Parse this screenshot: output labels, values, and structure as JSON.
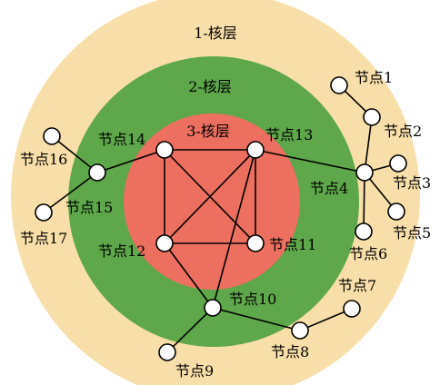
{
  "layers": [
    {
      "id": "core-1",
      "label": "1-核层",
      "color": "#f8dfa9"
    },
    {
      "id": "core-2",
      "label": "2-核层",
      "color": "#5ea74a"
    },
    {
      "id": "core-3",
      "label": "3-核层",
      "color": "#ec6f5f"
    }
  ],
  "nodes": [
    {
      "id": 1,
      "label": "节点1"
    },
    {
      "id": 2,
      "label": "节点2"
    },
    {
      "id": 3,
      "label": "节点3"
    },
    {
      "id": 4,
      "label": "节点4"
    },
    {
      "id": 5,
      "label": "节点5"
    },
    {
      "id": 6,
      "label": "节点6"
    },
    {
      "id": 7,
      "label": "节点7"
    },
    {
      "id": 8,
      "label": "节点8"
    },
    {
      "id": 9,
      "label": "节点9"
    },
    {
      "id": 10,
      "label": "节点10"
    },
    {
      "id": 11,
      "label": "节点11"
    },
    {
      "id": 12,
      "label": "节点12"
    },
    {
      "id": 13,
      "label": "节点13"
    },
    {
      "id": 14,
      "label": "节点14"
    },
    {
      "id": 15,
      "label": "节点15"
    },
    {
      "id": 16,
      "label": "节点16"
    },
    {
      "id": 17,
      "label": "节点17"
    }
  ],
  "edges": [
    [
      14,
      13
    ],
    [
      14,
      12
    ],
    [
      14,
      11
    ],
    [
      13,
      12
    ],
    [
      13,
      11
    ],
    [
      12,
      11
    ],
    [
      13,
      10
    ],
    [
      12,
      10
    ],
    [
      14,
      15
    ],
    [
      15,
      16
    ],
    [
      15,
      17
    ],
    [
      13,
      4
    ],
    [
      4,
      2
    ],
    [
      2,
      1
    ],
    [
      4,
      3
    ],
    [
      4,
      5
    ],
    [
      4,
      6
    ],
    [
      10,
      9
    ],
    [
      10,
      8
    ],
    [
      8,
      7
    ]
  ]
}
